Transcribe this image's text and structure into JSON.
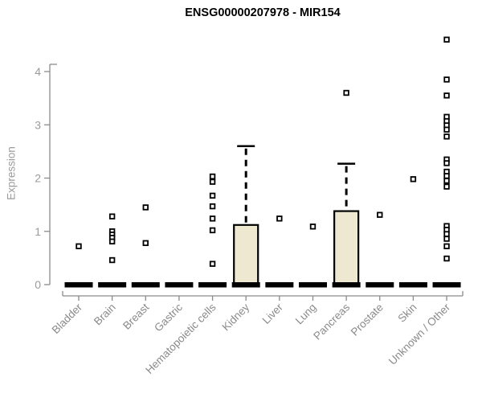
{
  "chart_data": {
    "type": "boxplot",
    "title": "ENSG00000207978 - MIR154",
    "ylabel": "Expression",
    "xlabel": "",
    "ylim": [
      0,
      4.75
    ],
    "yticks": [
      0,
      1,
      2,
      3,
      4
    ],
    "grid": false,
    "legend": false,
    "categories": [
      "Bladder",
      "Brain",
      "Breast",
      "Gastric",
      "Hematopoietic cells",
      "Kidney",
      "Liver",
      "Lung",
      "Pancreas",
      "Prostate",
      "Skin",
      "Unknown / Other"
    ],
    "series": [
      {
        "name": "Bladder",
        "q1": 0,
        "median": 0,
        "q3": 0,
        "whisker_low": 0,
        "whisker_high": 0,
        "outliers": [
          0.72
        ]
      },
      {
        "name": "Brain",
        "q1": 0,
        "median": 0,
        "q3": 0,
        "whisker_low": 0,
        "whisker_high": 0,
        "outliers": [
          1.28,
          1.0,
          0.94,
          0.88,
          0.81,
          0.46
        ]
      },
      {
        "name": "Breast",
        "q1": 0,
        "median": 0,
        "q3": 0,
        "whisker_low": 0,
        "whisker_high": 0,
        "outliers": [
          1.45,
          0.78
        ]
      },
      {
        "name": "Gastric",
        "q1": 0,
        "median": 0,
        "q3": 0,
        "whisker_low": 0,
        "whisker_high": 0,
        "outliers": []
      },
      {
        "name": "Hematopoietic cells",
        "q1": 0,
        "median": 0,
        "q3": 0,
        "whisker_low": 0,
        "whisker_high": 0,
        "outliers": [
          2.03,
          1.93,
          1.67,
          1.47,
          1.24,
          1.02,
          0.39
        ]
      },
      {
        "name": "Kidney",
        "q1": 0,
        "median": 0,
        "q3": 1.12,
        "whisker_low": 0,
        "whisker_high": 2.6,
        "outliers": []
      },
      {
        "name": "Liver",
        "q1": 0,
        "median": 0,
        "q3": 0,
        "whisker_low": 0,
        "whisker_high": 0,
        "outliers": [
          1.24
        ]
      },
      {
        "name": "Lung",
        "q1": 0,
        "median": 0,
        "q3": 0,
        "whisker_low": 0,
        "whisker_high": 0,
        "outliers": [
          1.09
        ]
      },
      {
        "name": "Pancreas",
        "q1": 0,
        "median": 0,
        "q3": 1.38,
        "whisker_low": 0,
        "whisker_high": 2.27,
        "outliers": [
          3.6
        ]
      },
      {
        "name": "Prostate",
        "q1": 0,
        "median": 0,
        "q3": 0,
        "whisker_low": 0,
        "whisker_high": 0,
        "outliers": [
          1.31
        ]
      },
      {
        "name": "Skin",
        "q1": 0,
        "median": 0,
        "q3": 0,
        "whisker_low": 0,
        "whisker_high": 0,
        "outliers": [
          1.98
        ]
      },
      {
        "name": "Unknown / Other",
        "q1": 0,
        "median": 0,
        "q3": 0,
        "whisker_low": 0,
        "whisker_high": 0,
        "outliers": [
          4.6,
          3.85,
          3.55,
          3.15,
          3.07,
          2.99,
          2.91,
          2.78,
          2.35,
          2.28,
          2.12,
          2.04,
          1.95,
          1.84,
          1.1,
          1.03,
          0.95,
          0.86,
          0.72,
          0.49
        ]
      }
    ],
    "colors": {
      "box_fill": "#EDE8CF",
      "box_stroke": "#000000",
      "median": "#000000",
      "outlier_stroke": "#000000",
      "outlier_fill": "#ffffff",
      "axis": "#8b8b8b",
      "tick_text": "#9b9b9b",
      "category_text": "#8a8a8a",
      "title_text": "#000000"
    }
  }
}
